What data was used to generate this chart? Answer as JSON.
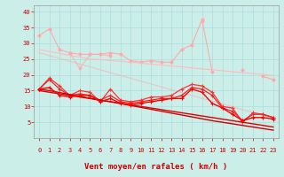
{
  "title": "",
  "xlabel": "Vent moyen/en rafales ( km/h )",
  "background_color": "#cceee8",
  "grid_color": "#aadddd",
  "x": [
    0,
    1,
    2,
    3,
    4,
    5,
    6,
    7,
    8,
    9,
    10,
    11,
    12,
    13,
    14,
    15,
    16,
    17,
    18,
    19,
    20,
    21,
    22,
    23
  ],
  "series": [
    {
      "color": "#ffaaaa",
      "alpha": 1.0,
      "linewidth": 0.8,
      "marker": "D",
      "markersize": 1.8,
      "values": [
        32.5,
        34.5,
        28.0,
        27.0,
        26.5,
        26.5,
        26.5,
        27.0,
        26.5,
        24.5,
        24.0,
        24.5,
        24.0,
        24.0,
        28.0,
        29.5,
        37.5,
        21.0,
        null,
        null,
        21.5,
        null,
        19.5,
        18.5
      ]
    },
    {
      "color": "#ffbbbb",
      "alpha": 1.0,
      "linewidth": 0.8,
      "marker": null,
      "markersize": 0,
      "values": [
        28.0,
        27.4,
        26.8,
        26.2,
        25.6,
        25.0,
        24.8,
        24.5,
        24.3,
        24.0,
        23.7,
        23.4,
        23.1,
        22.8,
        22.5,
        22.2,
        21.9,
        21.6,
        21.3,
        21.0,
        20.7,
        20.4,
        20.1,
        19.8
      ]
    },
    {
      "color": "#ffaaaa",
      "alpha": 0.8,
      "linewidth": 0.8,
      "marker": "D",
      "markersize": 1.8,
      "values": [
        null,
        null,
        null,
        27.0,
        22.0,
        26.5,
        26.5,
        26.0,
        null,
        null,
        null,
        null,
        null,
        null,
        null,
        null,
        37.0,
        null,
        null,
        null,
        null,
        null,
        null,
        null
      ]
    },
    {
      "color": "#ffaaaa",
      "alpha": 0.6,
      "linewidth": 0.8,
      "marker": null,
      "markersize": 0,
      "values": [
        27.0,
        26.1,
        25.2,
        24.3,
        23.4,
        22.5,
        21.6,
        20.7,
        19.8,
        18.9,
        18.0,
        17.1,
        16.2,
        15.3,
        14.4,
        13.5,
        12.6,
        11.7,
        10.8,
        9.9,
        9.0,
        8.1,
        7.2,
        6.3
      ]
    },
    {
      "color": "#ff3333",
      "alpha": 1.0,
      "linewidth": 0.9,
      "marker": "+",
      "markersize": 3.0,
      "values": [
        15.5,
        19.0,
        16.5,
        13.5,
        15.0,
        14.5,
        11.5,
        15.5,
        12.0,
        11.5,
        12.0,
        13.0,
        13.0,
        13.5,
        15.5,
        17.0,
        16.5,
        14.5,
        10.0,
        9.5,
        5.0,
        8.0,
        7.5,
        6.5
      ]
    },
    {
      "color": "#ee2222",
      "alpha": 1.0,
      "linewidth": 0.9,
      "marker": "+",
      "markersize": 3.0,
      "values": [
        15.5,
        18.5,
        15.5,
        13.5,
        14.0,
        13.5,
        12.0,
        13.5,
        11.5,
        11.0,
        11.5,
        12.0,
        12.5,
        12.5,
        13.5,
        16.0,
        15.5,
        13.5,
        9.5,
        8.5,
        5.5,
        7.5,
        7.5,
        6.5
      ]
    },
    {
      "color": "#cc0000",
      "alpha": 1.0,
      "linewidth": 1.0,
      "marker": null,
      "markersize": 0,
      "values": [
        15.5,
        15.0,
        14.4,
        13.8,
        13.2,
        12.6,
        12.0,
        11.5,
        10.9,
        10.3,
        9.7,
        9.1,
        8.5,
        7.9,
        7.3,
        6.7,
        6.1,
        5.5,
        5.0,
        4.5,
        4.0,
        3.5,
        3.0,
        2.5
      ]
    },
    {
      "color": "#dd0000",
      "alpha": 1.0,
      "linewidth": 1.0,
      "marker": null,
      "markersize": 0,
      "values": [
        15.0,
        14.5,
        14.0,
        13.5,
        13.0,
        12.5,
        12.0,
        11.5,
        11.0,
        10.5,
        10.0,
        9.5,
        9.0,
        8.5,
        8.0,
        7.5,
        7.0,
        6.5,
        6.0,
        5.5,
        5.0,
        4.5,
        4.0,
        3.5
      ]
    },
    {
      "color": "#ff0000",
      "alpha": 1.0,
      "linewidth": 1.0,
      "marker": "+",
      "markersize": 3.5,
      "values": [
        15.5,
        16.0,
        13.5,
        13.0,
        13.5,
        13.5,
        11.5,
        12.5,
        11.0,
        10.5,
        11.0,
        11.5,
        12.0,
        12.5,
        12.5,
        15.5,
        14.5,
        11.0,
        9.5,
        7.5,
        5.5,
        6.5,
        6.5,
        6.0
      ]
    }
  ],
  "ylim": [
    0,
    42
  ],
  "xlim": [
    -0.5,
    23.5
  ],
  "yticks": [
    5,
    10,
    15,
    20,
    25,
    30,
    35,
    40
  ],
  "xticks": [
    0,
    1,
    2,
    3,
    4,
    5,
    6,
    7,
    8,
    9,
    10,
    11,
    12,
    13,
    14,
    15,
    16,
    17,
    18,
    19,
    20,
    21,
    22,
    23
  ],
  "arrow_color": "#cc0000",
  "tick_fontsize": 5.0,
  "xlabel_fontsize": 6.5
}
